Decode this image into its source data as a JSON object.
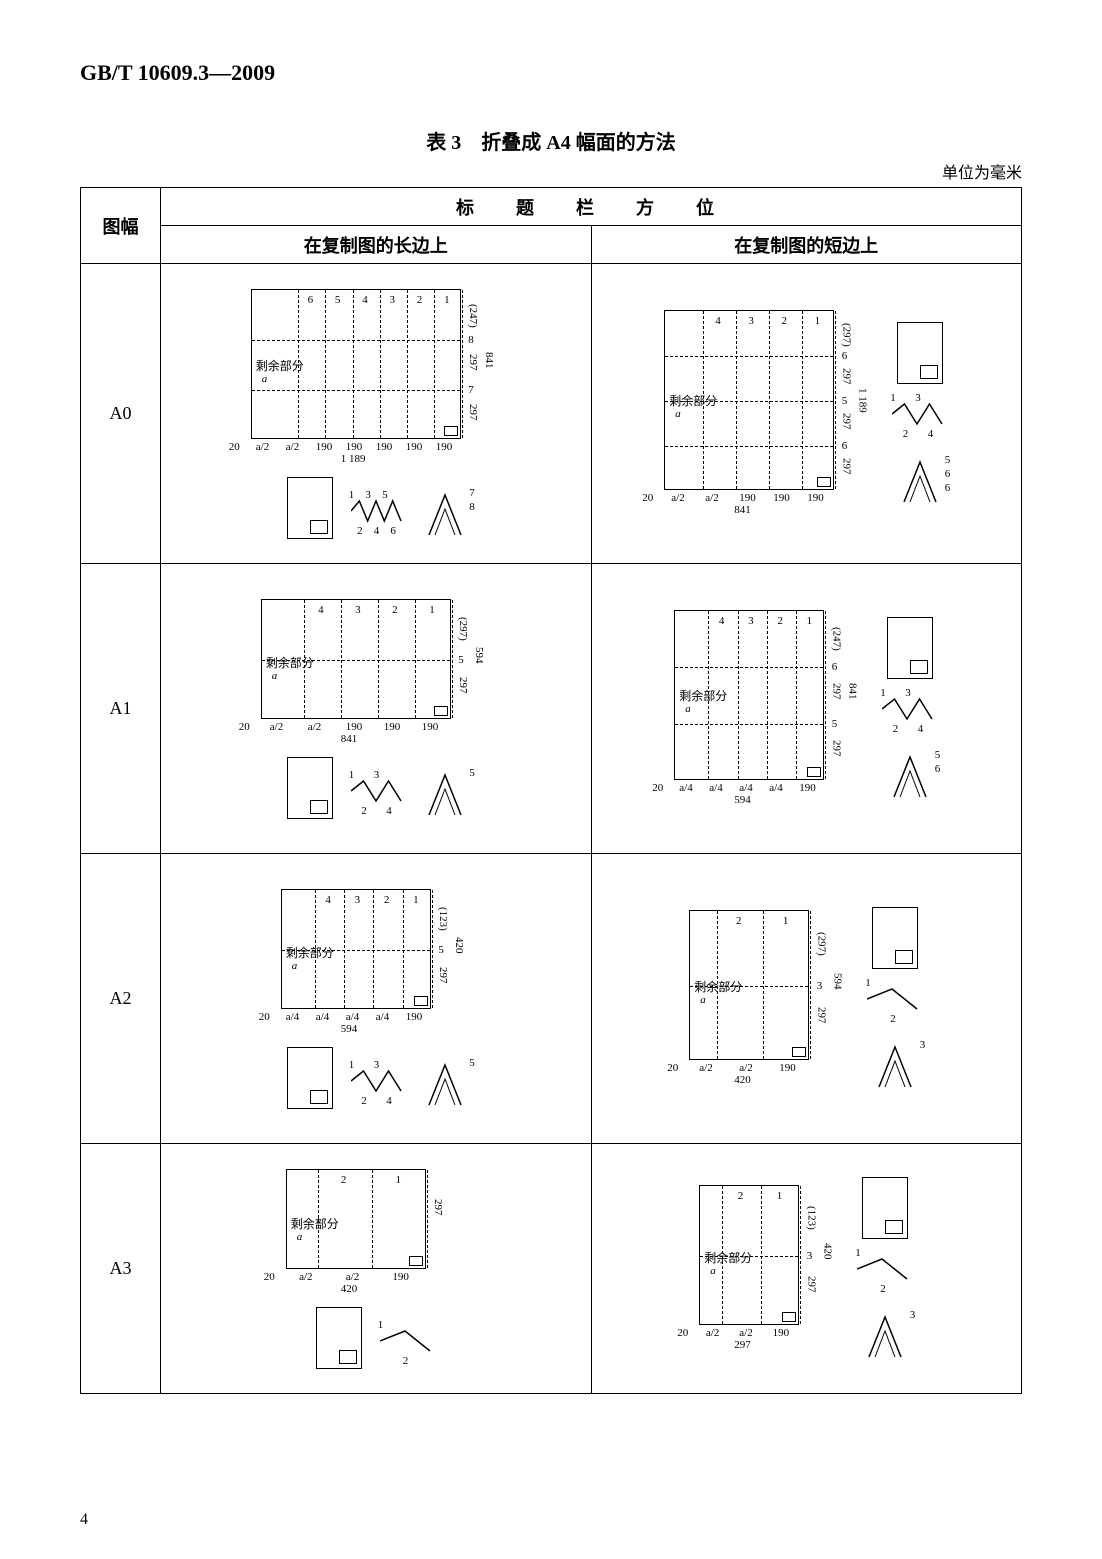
{
  "doc_id": "GB/T 10609.3—2009",
  "table_caption": "表 3　折叠成 A4 幅面的方法",
  "unit_note": "单位为毫米",
  "header": {
    "format_col": "图幅",
    "title_block_position": "标　题　栏　方　位",
    "long_side": "在复制图的长边上",
    "short_side": "在复制图的短边上"
  },
  "remain_label": "剩余部分",
  "page_number": "4",
  "rows": [
    {
      "format": "A0",
      "long": {
        "outer_w": 210,
        "outer_h": 150,
        "v_count": 6,
        "h_count": 2,
        "bottom_segments": [
          "a/2",
          "a/2",
          "190",
          "190",
          "190",
          "190",
          "190"
        ],
        "bottom_total": "1 189",
        "left_margin": "20",
        "right_dims": [
          "(247)",
          "297",
          "297"
        ],
        "right_total": "841",
        "h_guide_labels": [
          "8",
          "7"
        ],
        "zigzag_labels": [
          "1",
          "2",
          "3",
          "4",
          "5",
          "6"
        ],
        "caret_labels": [
          "7",
          "8"
        ]
      },
      "short": {
        "outer_w": 170,
        "outer_h": 180,
        "v_count": 4,
        "h_count": 3,
        "bottom_segments": [
          "a/2",
          "a/2",
          "190",
          "190",
          "190"
        ],
        "bottom_total": "841",
        "left_margin": "20",
        "right_dims": [
          "(297)",
          "297",
          "297",
          "297"
        ],
        "right_total": "1 189",
        "h_guide_labels": [
          "6",
          "5",
          "6"
        ],
        "zigzag_labels": [
          "1",
          "2",
          "3",
          "4"
        ],
        "caret_labels": [
          "5",
          "6",
          "6"
        ]
      }
    },
    {
      "format": "A1",
      "long": {
        "outer_w": 190,
        "outer_h": 120,
        "v_count": 4,
        "h_count": 1,
        "bottom_segments": [
          "a/2",
          "a/2",
          "190",
          "190",
          "190"
        ],
        "bottom_total": "841",
        "left_margin": "20",
        "right_dims": [
          "(297)",
          "297"
        ],
        "right_total": "594",
        "h_guide_labels": [
          "5"
        ],
        "zigzag_labels": [
          "1",
          "2",
          "3",
          "4"
        ],
        "caret_labels": [
          "5"
        ]
      },
      "short": {
        "outer_w": 150,
        "outer_h": 170,
        "v_count": 4,
        "h_count": 2,
        "bottom_segments": [
          "a/4",
          "a/4",
          "a/4",
          "a/4",
          "190"
        ],
        "bottom_total": "594",
        "left_margin": "20",
        "right_dims": [
          "(247)",
          "297",
          "297"
        ],
        "right_total": "841",
        "h_guide_labels": [
          "6",
          "5"
        ],
        "zigzag_labels": [
          "1",
          "2",
          "3",
          "4"
        ],
        "caret_labels": [
          "5",
          "6"
        ]
      }
    },
    {
      "format": "A2",
      "long": {
        "outer_w": 150,
        "outer_h": 120,
        "v_count": 4,
        "h_count": 1,
        "bottom_segments": [
          "a/4",
          "a/4",
          "a/4",
          "a/4",
          "190"
        ],
        "bottom_total": "594",
        "left_margin": "20",
        "right_dims": [
          "(123)",
          "297"
        ],
        "right_total": "420",
        "h_guide_labels": [
          "5"
        ],
        "zigzag_labels": [
          "1",
          "2",
          "3",
          "4"
        ],
        "caret_labels": [
          "5"
        ]
      },
      "short": {
        "outer_w": 120,
        "outer_h": 150,
        "v_count": 2,
        "h_count": 1,
        "bottom_segments": [
          "a/2",
          "a/2",
          "190"
        ],
        "bottom_total": "420",
        "left_margin": "20",
        "right_dims": [
          "(297)",
          "297"
        ],
        "right_total": "594",
        "h_guide_labels": [
          "3"
        ],
        "zigzag_labels": [
          "1",
          "2"
        ],
        "caret_labels": [
          "3"
        ]
      }
    },
    {
      "format": "A3",
      "long": {
        "outer_w": 140,
        "outer_h": 100,
        "v_count": 2,
        "h_count": 0,
        "bottom_segments": [
          "a/2",
          "a/2",
          "190"
        ],
        "bottom_total": "420",
        "left_margin": "20",
        "right_dims": [
          "297"
        ],
        "right_total": "",
        "h_guide_labels": [],
        "zigzag_labels": [
          "1",
          "2"
        ],
        "caret_labels": []
      },
      "short": {
        "outer_w": 100,
        "outer_h": 140,
        "v_count": 2,
        "h_count": 1,
        "bottom_segments": [
          "a/2",
          "a/2",
          "190"
        ],
        "bottom_total": "297",
        "left_margin": "20",
        "right_dims": [
          "(123)",
          "297"
        ],
        "right_total": "420",
        "h_guide_labels": [
          "3"
        ],
        "zigzag_labels": [
          "1",
          "2"
        ],
        "caret_labels": [
          "3"
        ]
      }
    }
  ],
  "style": {
    "stroke": "#000000",
    "dash": "3,3",
    "font_num": 11,
    "font_label": 18
  }
}
